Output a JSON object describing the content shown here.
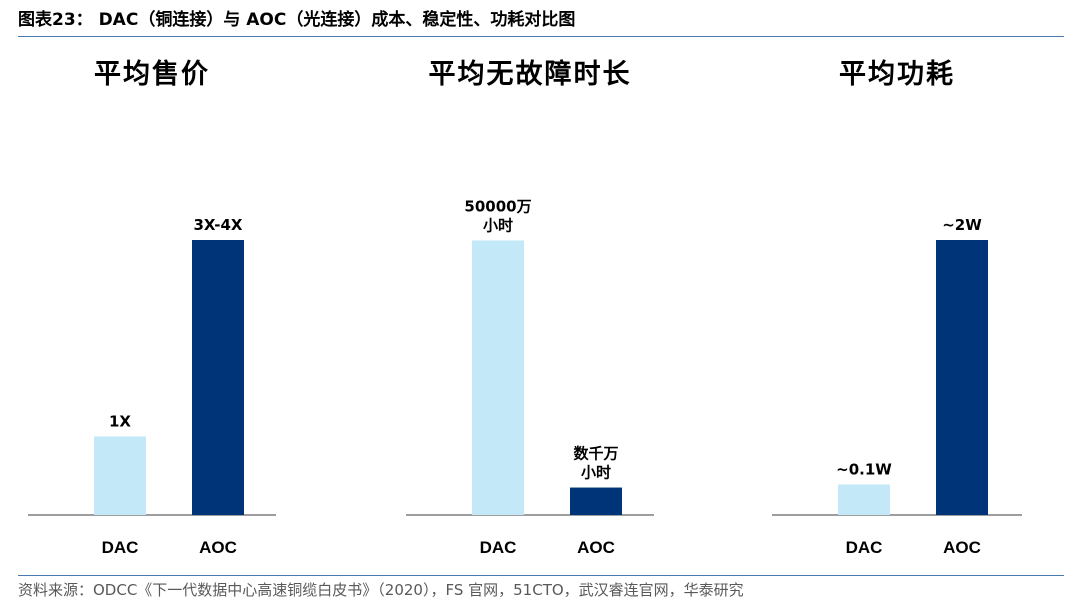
{
  "figure_title": "图表23： DAC（铜连接）与 AOC（光连接）成本、稳定性、功耗对比图",
  "source": "资料来源：ODCC《下一代数据中心高速铜缆白皮书》（2020），FS 官网，51CTO，武汉睿连官网，华泰研究",
  "colors": {
    "dac": "#c3e8f7",
    "aoc": "#003479",
    "axis": "#7f7f7f"
  },
  "chart_data": [
    {
      "type": "bar",
      "title": "平均售价",
      "categories": [
        "DAC",
        "AOC"
      ],
      "values": [
        1,
        3.5
      ],
      "data_labels": [
        "1X",
        "3X-4X"
      ],
      "ylim": [
        0,
        4.2
      ]
    },
    {
      "type": "bar",
      "title": "平均无故障时长",
      "categories": [
        "DAC",
        "AOC"
      ],
      "values": [
        50000,
        5000
      ],
      "data_labels": [
        "50000万\n小时",
        "数千万\n小时"
      ],
      "ylim": [
        0,
        60100
      ]
    },
    {
      "type": "bar",
      "title": "平均功耗",
      "categories": [
        "DAC",
        "AOC"
      ],
      "values": [
        0.2,
        1.8
      ],
      "data_labels": [
        "~0.1W",
        "~2W"
      ],
      "ylim": [
        0,
        2.16
      ]
    }
  ]
}
